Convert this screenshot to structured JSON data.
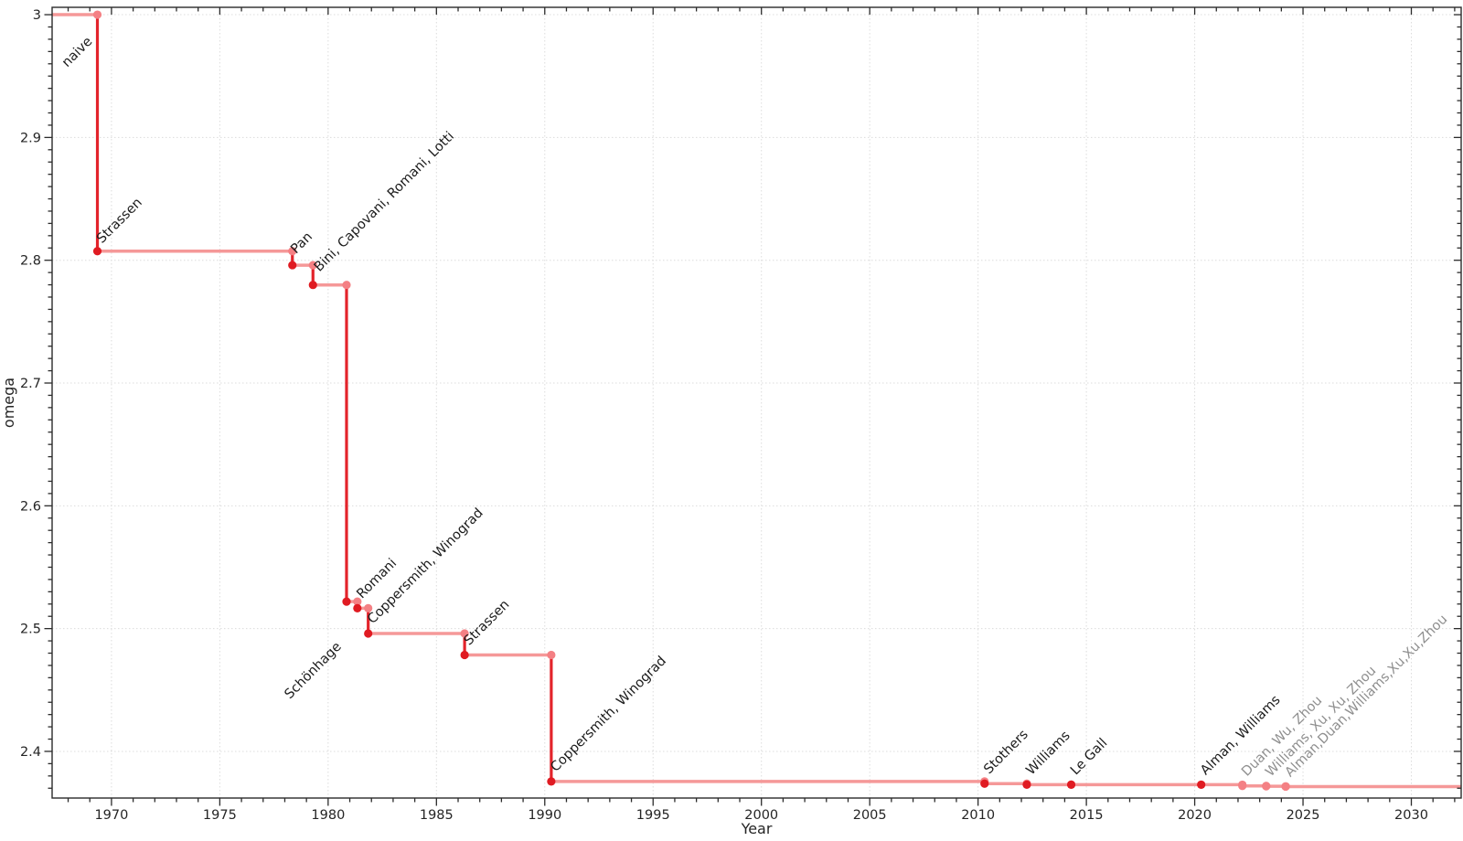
{
  "chart_data": {
    "type": "line",
    "subtype": "step-function",
    "title": "",
    "xlabel": "Year",
    "ylabel": "omega",
    "legend": "none",
    "grid": true,
    "x_range": [
      1967.26,
      2032.3
    ],
    "y_range": [
      2.362,
      3.006
    ],
    "x_major_ticks": [
      1970,
      1975,
      1980,
      1985,
      1990,
      1995,
      2000,
      2005,
      2010,
      2015,
      2020,
      2025,
      2030
    ],
    "x_major_tick_labels": [
      "1970",
      "1975",
      "1980",
      "1985",
      "1990",
      "1995",
      "2000",
      "2005",
      "2010",
      "2015",
      "2020",
      "2025",
      "2030"
    ],
    "x_minor_step": 1,
    "y_major_ticks": [
      2.4,
      2.5,
      2.6,
      2.7,
      2.8,
      2.9,
      3
    ],
    "y_major_tick_labels": [
      "2.4",
      "2.5",
      "2.6",
      "2.7",
      "2.8",
      "2.9",
      "3"
    ],
    "y_minor_step": 0.01,
    "start": {
      "year": 1967.26,
      "omega": 3
    },
    "points": [
      {
        "year": 1969.35,
        "omega": 2.8074,
        "label": "Strassen",
        "label_color": "black",
        "marker": "red",
        "label_offset": [
          5,
          -8
        ]
      },
      {
        "year": 1978.35,
        "omega": 2.796,
        "label": "Pan",
        "label_color": "black",
        "marker": "red",
        "label_offset": [
          4,
          -12
        ]
      },
      {
        "year": 1979.3,
        "omega": 2.7799,
        "label": "Bini, Capovani, Romani, Lotti",
        "label_color": "black",
        "marker": "red",
        "label_offset": [
          7,
          -14
        ]
      },
      {
        "year": 1980.85,
        "omega": 2.522,
        "label": "Schönhage",
        "label_color": "black",
        "marker": "red",
        "label_offset": [
          -62,
          107
        ]
      },
      {
        "year": 1981.35,
        "omega": 2.5166,
        "label": "Romani",
        "label_color": "black",
        "marker": "red",
        "label_offset": [
          5,
          -10
        ]
      },
      {
        "year": 1981.85,
        "omega": 2.496,
        "label": "Coppersmith, Winograd",
        "label_color": "black",
        "marker": "red",
        "label_offset": [
          5,
          -10
        ]
      },
      {
        "year": 1986.3,
        "omega": 2.4785,
        "label": "Strassen",
        "label_color": "black",
        "marker": "red",
        "label_offset": [
          5,
          -10
        ]
      },
      {
        "year": 1990.3,
        "omega": 2.3755,
        "label": "Coppersmith, Winograd",
        "label_color": "black",
        "marker": "red",
        "label_offset": [
          5,
          -10
        ]
      },
      {
        "year": 2010.3,
        "omega": 2.3737,
        "label": "Stothers",
        "label_color": "black",
        "marker": "red",
        "label_offset": [
          5,
          -10
        ]
      },
      {
        "year": 2012.25,
        "omega": 2.3729,
        "label": "Williams",
        "label_color": "black",
        "marker": "red",
        "label_offset": [
          5,
          -10
        ]
      },
      {
        "year": 2014.3,
        "omega": 2.3728639,
        "label": "Le Gall",
        "label_color": "black",
        "marker": "red",
        "label_offset": [
          5,
          -10
        ]
      },
      {
        "year": 2020.3,
        "omega": 2.3728596,
        "label": "Alman, Williams",
        "label_color": "black",
        "marker": "red",
        "label_offset": [
          5,
          -10
        ]
      },
      {
        "year": 2022.2,
        "omega": 2.371866,
        "label": "Duan, Wu, Zhou",
        "label_color": "gray",
        "marker": "pink",
        "label_offset": [
          5,
          -10
        ]
      },
      {
        "year": 2023.3,
        "omega": 2.371552,
        "label": "Williams, Xu, Xu, Zhou",
        "label_color": "gray",
        "marker": "pink",
        "label_offset": [
          5,
          -10
        ]
      },
      {
        "year": 2024.2,
        "omega": 2.371339,
        "label": "Alman,Duan,Williams,Xu,Xu,Zhou",
        "label_color": "gray",
        "marker": "pink",
        "label_offset": [
          5,
          -10
        ]
      }
    ],
    "annotations": [
      {
        "text": "naive",
        "year": 1969.35,
        "omega": 3,
        "label_color": "black",
        "label_offset": [
          -33,
          58
        ]
      }
    ],
    "annotation_rotation_deg": -45,
    "colors": {
      "step_horizontal": "#f59898",
      "step_vertical": "#e3242b",
      "marker_red": "#e01b22",
      "marker_pink": "#f48084",
      "grid": "#dcdcdc",
      "axis": "#2b2b2b",
      "tick_label": "#252525",
      "annotation_black": "#1c1c1c",
      "annotation_gray": "#8f8f8f",
      "background": "#ffffff"
    }
  }
}
